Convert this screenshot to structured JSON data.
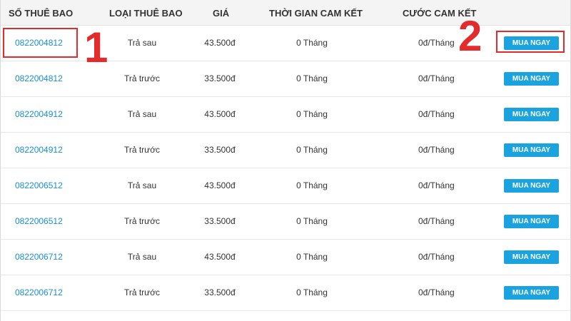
{
  "table": {
    "headers": {
      "number": "SỐ THUÊ BAO",
      "type": "LOẠI THUÊ BAO",
      "price": "GIÁ",
      "commit_time": "THỜI GIAN CAM KẾT",
      "commit_fee": "CƯỚC CAM KẾT"
    },
    "rows": [
      {
        "number": "0822004812",
        "type": "Trả sau",
        "price": "43.500đ",
        "commit_time": "0 Tháng",
        "commit_fee": "0đ/Tháng",
        "button": "MUA NGAY"
      },
      {
        "number": "0822004812",
        "type": "Trả trước",
        "price": "33.500đ",
        "commit_time": "0 Tháng",
        "commit_fee": "0đ/Tháng",
        "button": "MUA NGAY"
      },
      {
        "number": "0822004912",
        "type": "Trả sau",
        "price": "43.500đ",
        "commit_time": "0 Tháng",
        "commit_fee": "0đ/Tháng",
        "button": "MUA NGAY"
      },
      {
        "number": "0822004912",
        "type": "Trả trước",
        "price": "33.500đ",
        "commit_time": "0 Tháng",
        "commit_fee": "0đ/Tháng",
        "button": "MUA NGAY"
      },
      {
        "number": "0822006512",
        "type": "Trả sau",
        "price": "43.500đ",
        "commit_time": "0 Tháng",
        "commit_fee": "0đ/Tháng",
        "button": "MUA NGAY"
      },
      {
        "number": "0822006512",
        "type": "Trả trước",
        "price": "33.500đ",
        "commit_time": "0 Tháng",
        "commit_fee": "0đ/Tháng",
        "button": "MUA NGAY"
      },
      {
        "number": "0822006712",
        "type": "Trả sau",
        "price": "43.500đ",
        "commit_time": "0 Tháng",
        "commit_fee": "0đ/Tháng",
        "button": "MUA NGAY"
      },
      {
        "number": "0822006712",
        "type": "Trả trước",
        "price": "33.500đ",
        "commit_time": "0 Tháng",
        "commit_fee": "0đ/Tháng",
        "button": "MUA NGAY"
      }
    ]
  },
  "annotations": {
    "marker_1": "1",
    "marker_2": "2",
    "color": "#e32b2b"
  },
  "colors": {
    "link": "#1a8ed1",
    "button": "#1aa3de",
    "header_bg": "#f4f4f4"
  }
}
